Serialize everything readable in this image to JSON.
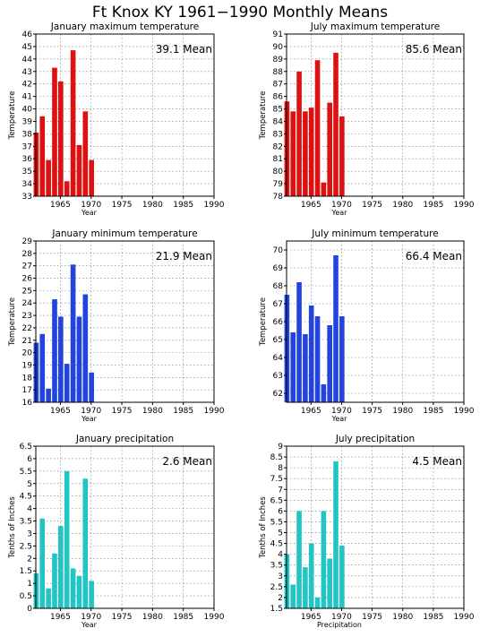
{
  "page_title": "Ft Knox KY   1961−1990 Monthly Means",
  "chart_data": [
    {
      "type": "bar",
      "title": "January maximum temperature",
      "xlabel": "Year",
      "ylabel": "Temperature",
      "mean_label": "39.1 Mean",
      "color": "#dd1111",
      "x": [
        1961,
        1962,
        1963,
        1964,
        1965,
        1966,
        1967,
        1968,
        1969,
        1970
      ],
      "values": [
        38.1,
        39.4,
        35.9,
        43.3,
        42.2,
        34.2,
        44.7,
        37.1,
        39.8,
        35.9
      ],
      "xlim": [
        1961,
        1990
      ],
      "ylim": [
        33,
        46
      ],
      "yticks": [
        33,
        34,
        35,
        36,
        37,
        38,
        39,
        40,
        41,
        42,
        43,
        44,
        45,
        46
      ],
      "yticklabels": [
        "33",
        "34",
        "35",
        "36",
        "37",
        "38",
        "39",
        "40",
        "41",
        "42",
        "43",
        "44",
        "45",
        "46"
      ],
      "xticks": [
        1965,
        1970,
        1975,
        1980,
        1985,
        1990
      ],
      "grid": true
    },
    {
      "type": "bar",
      "title": "July maximum temperature",
      "xlabel": "Year",
      "ylabel": "Temperature",
      "mean_label": "85.6 Mean",
      "color": "#dd1111",
      "x": [
        1961,
        1962,
        1963,
        1964,
        1965,
        1966,
        1967,
        1968,
        1969,
        1970
      ],
      "values": [
        85.6,
        84.8,
        88.0,
        84.8,
        85.1,
        88.9,
        79.1,
        85.5,
        89.5,
        84.4
      ],
      "xlim": [
        1961,
        1990
      ],
      "ylim": [
        78,
        91
      ],
      "yticks": [
        78,
        79,
        80,
        81,
        82,
        83,
        84,
        85,
        86,
        87,
        88,
        89,
        90,
        91
      ],
      "yticklabels": [
        "78",
        "79",
        "80",
        "81",
        "82",
        "83",
        "84",
        "85",
        "86",
        "87",
        "88",
        "89",
        "90",
        "91"
      ],
      "xticks": [
        1965,
        1970,
        1975,
        1980,
        1985,
        1990
      ],
      "grid": true
    },
    {
      "type": "bar",
      "title": "January minimum temperature",
      "xlabel": "Year",
      "ylabel": "Temperature",
      "mean_label": "21.9 Mean",
      "color": "#2244dd",
      "x": [
        1961,
        1962,
        1963,
        1964,
        1965,
        1966,
        1967,
        1968,
        1969,
        1970
      ],
      "values": [
        20.8,
        21.5,
        17.1,
        24.3,
        22.9,
        19.1,
        27.1,
        22.9,
        24.7,
        18.4
      ],
      "xlim": [
        1961,
        1990
      ],
      "ylim": [
        16,
        29
      ],
      "yticks": [
        16,
        17,
        18,
        19,
        20,
        21,
        22,
        23,
        24,
        25,
        26,
        27,
        28,
        29
      ],
      "yticklabels": [
        "16",
        "17",
        "18",
        "19",
        "20",
        "21",
        "22",
        "23",
        "24",
        "25",
        "26",
        "27",
        "28",
        "29"
      ],
      "xticks": [
        1965,
        1970,
        1975,
        1980,
        1985,
        1990
      ],
      "grid": true
    },
    {
      "type": "bar",
      "title": "July minimum temperature",
      "xlabel": "Year",
      "ylabel": "Temperature",
      "mean_label": "66.4 Mean",
      "color": "#2244dd",
      "x": [
        1961,
        1962,
        1963,
        1964,
        1965,
        1966,
        1967,
        1968,
        1969,
        1970
      ],
      "values": [
        67.5,
        65.4,
        68.2,
        65.3,
        66.9,
        66.3,
        62.5,
        65.8,
        69.7,
        66.3
      ],
      "xlim": [
        1961,
        1990
      ],
      "ylim": [
        61.5,
        70.5
      ],
      "yticks": [
        62,
        63,
        64,
        65,
        66,
        67,
        68,
        69,
        70
      ],
      "yticklabels": [
        "62",
        "63",
        "64",
        "65",
        "66",
        "67",
        "68",
        "69",
        "70"
      ],
      "xticks": [
        1965,
        1970,
        1975,
        1980,
        1985,
        1990
      ],
      "grid": true
    },
    {
      "type": "bar",
      "title": "January precipitation",
      "xlabel": "Year",
      "ylabel": "Tenths of Inches",
      "mean_label": "2.6 Mean",
      "color": "#22c4c4",
      "x": [
        1961,
        1962,
        1963,
        1964,
        1965,
        1966,
        1967,
        1968,
        1969,
        1970
      ],
      "values": [
        1.4,
        3.6,
        0.8,
        2.2,
        3.3,
        5.5,
        1.6,
        1.3,
        5.2,
        1.1
      ],
      "xlim": [
        1961,
        1990
      ],
      "ylim": [
        0,
        6.5
      ],
      "yticks": [
        0,
        0.5,
        1,
        1.5,
        2,
        2.5,
        3,
        3.5,
        4,
        4.5,
        5,
        5.5,
        6,
        6.5
      ],
      "yticklabels": [
        "0",
        "0.5",
        "1",
        "1.5",
        "2",
        "2.5",
        "3",
        "3.5",
        "4",
        "4.5",
        "5",
        "5.5",
        "6",
        "6.5"
      ],
      "xticks": [
        1965,
        1970,
        1975,
        1980,
        1985,
        1990
      ],
      "grid": true
    },
    {
      "type": "bar",
      "title": "July precipitation",
      "xlabel": "Precipitation",
      "ylabel": "Tenths of Inches",
      "mean_label": "4.5 Mean",
      "color": "#22c4c4",
      "x": [
        1961,
        1962,
        1963,
        1964,
        1965,
        1966,
        1967,
        1968,
        1969,
        1970
      ],
      "values": [
        4.0,
        2.6,
        6.0,
        3.4,
        4.5,
        2.0,
        6.0,
        3.8,
        8.3,
        4.4
      ],
      "xlim": [
        1961,
        1990
      ],
      "ylim": [
        1.5,
        9
      ],
      "yticks": [
        1.5,
        2,
        2.5,
        3,
        3.5,
        4,
        4.5,
        5,
        5.5,
        6,
        6.5,
        7,
        7.5,
        8,
        8.5,
        9
      ],
      "yticklabels": [
        "1.5",
        "2",
        "2.5",
        "3",
        "3.5",
        "4",
        "4.5",
        "5",
        "5.5",
        "6",
        "6.5",
        "7",
        "7.5",
        "8",
        "8.5",
        "9"
      ],
      "xticks": [
        1965,
        1970,
        1975,
        1980,
        1985,
        1990
      ],
      "grid": true
    }
  ]
}
